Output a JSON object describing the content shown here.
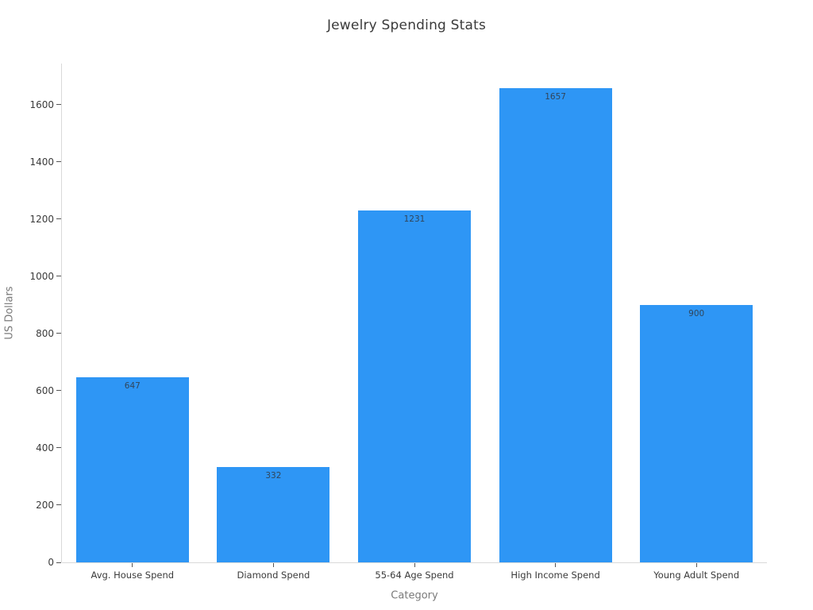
{
  "chart_data": {
    "type": "bar",
    "title": "Jewelry Spending Stats",
    "categories": [
      "Avg. House Spend",
      "Diamond Spend",
      "55-64 Age Spend",
      "High Income Spend",
      "Young Adult Spend"
    ],
    "values": [
      647,
      332,
      1231,
      1657,
      900
    ],
    "value_labels": [
      "647",
      "332",
      "1231",
      "1657",
      "900"
    ],
    "xlabel": "Category",
    "ylabel": "US Dollars",
    "ylim": [
      0,
      1744
    ],
    "yticks": [
      0,
      200,
      400,
      600,
      800,
      1000,
      1200,
      1400,
      1600
    ],
    "grid": false,
    "legend": "none",
    "bar_color": "#2e96f5",
    "value_label_position": "inside-top"
  },
  "colors": {
    "background": "#ffffff",
    "bar": "#2e96f5",
    "title_text": "#3a3a3a",
    "tick_text": "#3b3b3b",
    "axis_title_text": "#7a7a7a",
    "value_label_text": "#31455a",
    "axis_line": "#d9d9d9",
    "tick_mark": "#555555"
  }
}
